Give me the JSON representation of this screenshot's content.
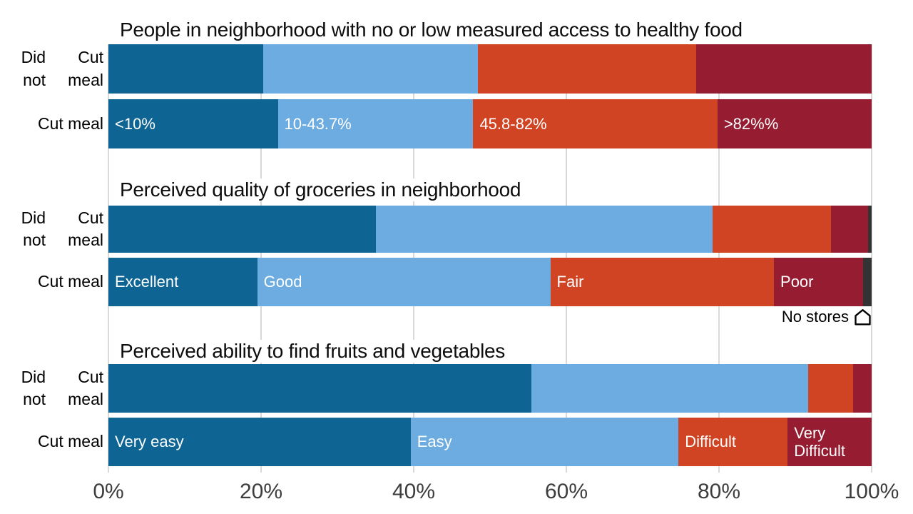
{
  "palette": {
    "darkblue": "#0E6493",
    "lightblue": "#6CACE0",
    "orange": "#D04423",
    "darkred": "#951C31",
    "nostores": "#333333",
    "gridline": "#d9d9d9"
  },
  "axis": {
    "ticks": [
      "0%",
      "20%",
      "40%",
      "60%",
      "80%",
      "100%"
    ]
  },
  "row_labels": [
    [
      "Did not",
      "Cut meal"
    ],
    [
      "Cut meal"
    ]
  ],
  "chart_data": [
    {
      "type": "bar",
      "orientation": "horizontal",
      "stacked": true,
      "title": "People in neighborhood with no or low measured access to healthy food",
      "categories": [
        "Did not Cut meal",
        "Cut meal"
      ],
      "series": [
        {
          "name": "<10%",
          "color": "darkblue",
          "values": [
            20.3,
            22.2
          ],
          "label_in_bar": true
        },
        {
          "name": "10-43.7%",
          "color": "lightblue",
          "values": [
            28.1,
            25.6
          ],
          "label_in_bar": true
        },
        {
          "name": "45.8-82%",
          "color": "orange",
          "values": [
            28.6,
            32.0
          ],
          "label_in_bar": true
        },
        {
          "name": ">82%%",
          "color": "darkred",
          "values": [
            23.0,
            20.2
          ],
          "label_in_bar": true
        }
      ],
      "xlim": [
        0,
        100
      ],
      "xticks": [
        "0%",
        "20%",
        "40%",
        "60%",
        "80%",
        "100%"
      ],
      "grid": true,
      "legend": "labels-in-bars"
    },
    {
      "type": "bar",
      "orientation": "horizontal",
      "stacked": true,
      "title": "Perceived quality of groceries in neighborhood",
      "categories": [
        "Did not Cut meal",
        "Cut meal"
      ],
      "series": [
        {
          "name": "Excellent",
          "color": "darkblue",
          "values": [
            35.0,
            19.5
          ],
          "label_in_bar": true
        },
        {
          "name": "Good",
          "color": "lightblue",
          "values": [
            44.2,
            38.4
          ],
          "label_in_bar": true
        },
        {
          "name": "Fair",
          "color": "orange",
          "values": [
            15.5,
            29.3
          ],
          "label_in_bar": true
        },
        {
          "name": "Poor",
          "color": "darkred",
          "values": [
            4.8,
            11.7
          ],
          "label_in_bar": true
        },
        {
          "name": "No stores",
          "color": "nostores",
          "values": [
            0.5,
            1.1
          ],
          "label_in_bar": false
        }
      ],
      "annotation": {
        "text": "No stores",
        "icon": "house-icon"
      },
      "xlim": [
        0,
        100
      ],
      "xticks": [
        "0%",
        "20%",
        "40%",
        "60%",
        "80%",
        "100%"
      ],
      "grid": true,
      "legend": "labels-in-bars"
    },
    {
      "type": "bar",
      "orientation": "horizontal",
      "stacked": true,
      "title": "Perceived ability to find fruits and vegetables",
      "categories": [
        "Did not Cut meal",
        "Cut meal"
      ],
      "series": [
        {
          "name": "Very easy",
          "color": "darkblue",
          "values": [
            55.4,
            39.6
          ],
          "label_in_bar": true
        },
        {
          "name": "Easy",
          "color": "lightblue",
          "values": [
            36.3,
            35.1
          ],
          "label_in_bar": true
        },
        {
          "name": "Difficult",
          "color": "orange",
          "values": [
            5.9,
            14.3
          ],
          "label_in_bar": true
        },
        {
          "name": "Very Difficult",
          "color": "darkred",
          "values": [
            2.4,
            11.0
          ],
          "label_in_bar": true
        }
      ],
      "xlim": [
        0,
        100
      ],
      "xticks": [
        "0%",
        "20%",
        "40%",
        "60%",
        "80%",
        "100%"
      ],
      "grid": true,
      "legend": "labels-in-bars"
    }
  ]
}
